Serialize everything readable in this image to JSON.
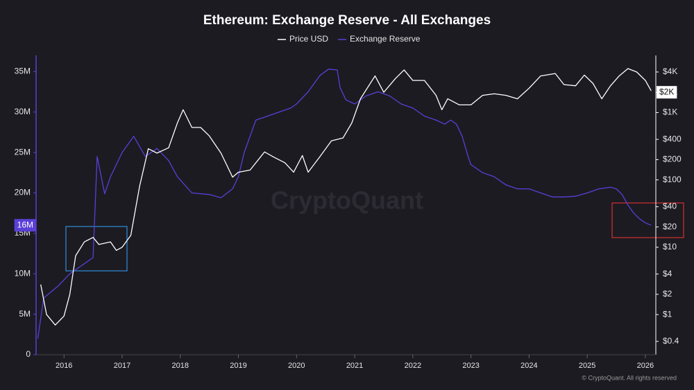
{
  "chart_data": {
    "type": "line",
    "title": "Ethereum: Exchange Reserve - All Exchanges",
    "xlim": [
      2015.52,
      2026.18
    ],
    "xticks": [
      2016,
      2017,
      2018,
      2019,
      2020,
      2021,
      2022,
      2023,
      2024,
      2025,
      2026
    ],
    "ylim": [
      0,
      37000000
    ],
    "yticks": [
      0,
      {
        "value": 5000000,
        "label": "5M"
      },
      {
        "value": 10000000,
        "label": "10M"
      },
      {
        "value": 15000000,
        "label": "15M"
      },
      {
        "value": 20000000,
        "label": "20M"
      },
      {
        "value": 25000000,
        "label": "25M"
      },
      {
        "value": 30000000,
        "label": "30M"
      },
      {
        "value": 35000000,
        "label": "35M"
      }
    ],
    "y2lim": [
      0.254,
      7050
    ],
    "y2scale": "log",
    "y2ticks": [
      {
        "value": 0.4,
        "label": "$0.4"
      },
      {
        "value": 1,
        "label": "$1"
      },
      {
        "value": 2,
        "label": "$2"
      },
      {
        "value": 4,
        "label": "$4"
      },
      {
        "value": 10,
        "label": "$10"
      },
      {
        "value": 20,
        "label": "$20"
      },
      {
        "value": 40,
        "label": "$40"
      },
      {
        "value": 100,
        "label": "$100"
      },
      {
        "value": 200,
        "label": "$200"
      },
      {
        "value": 400,
        "label": "$400"
      },
      {
        "value": 1000,
        "label": "$1K"
      },
      {
        "value": 2000,
        "label": "$2K"
      },
      {
        "value": 4000,
        "label": "$4K"
      }
    ],
    "legend": "top",
    "series": [
      {
        "name": "Price USD",
        "color": "#ffffff",
        "axis": "y2",
        "x": [
          2015.6,
          2015.7,
          2015.85,
          2016.0,
          2016.1,
          2016.2,
          2016.35,
          2016.5,
          2016.6,
          2016.8,
          2016.9,
          2017.0,
          2017.15,
          2017.3,
          2017.45,
          2017.6,
          2017.8,
          2017.95,
          2018.05,
          2018.2,
          2018.35,
          2018.5,
          2018.7,
          2018.9,
          2019.0,
          2019.2,
          2019.45,
          2019.6,
          2019.8,
          2019.95,
          2020.1,
          2020.2,
          2020.4,
          2020.6,
          2020.8,
          2020.95,
          2021.1,
          2021.35,
          2021.5,
          2021.7,
          2021.85,
          2022.0,
          2022.2,
          2022.4,
          2022.5,
          2022.6,
          2022.8,
          2023.0,
          2023.2,
          2023.4,
          2023.6,
          2023.8,
          2024.0,
          2024.2,
          2024.45,
          2024.6,
          2024.8,
          2024.95,
          2025.1,
          2025.25,
          2025.4,
          2025.55,
          2025.7,
          2025.85,
          2026.0,
          2026.1
        ],
        "values": [
          2.8,
          1,
          0.7,
          0.95,
          2,
          7.5,
          12,
          14,
          11,
          12,
          9,
          10,
          15,
          80,
          290,
          250,
          300,
          700,
          1100,
          600,
          600,
          450,
          250,
          110,
          130,
          140,
          260,
          220,
          180,
          130,
          230,
          130,
          220,
          380,
          420,
          700,
          1600,
          3500,
          2000,
          3200,
          4300,
          3000,
          3000,
          1800,
          1100,
          1600,
          1300,
          1300,
          1800,
          1900,
          1800,
          1600,
          2300,
          3500,
          3800,
          2600,
          2500,
          3600,
          2700,
          1600,
          2500,
          3500,
          4500,
          4000,
          3000,
          2100
        ]
      },
      {
        "name": "Exchange Reserve",
        "color": "#5b3fd6",
        "axis": "y",
        "x": [
          2015.55,
          2015.65,
          2015.9,
          2016.1,
          2016.3,
          2016.5,
          2016.57,
          2016.7,
          2016.8,
          2017.0,
          2017.2,
          2017.4,
          2017.6,
          2017.8,
          2017.95,
          2018.2,
          2018.5,
          2018.7,
          2018.9,
          2019.0,
          2019.1,
          2019.3,
          2019.5,
          2019.7,
          2019.9,
          2020.0,
          2020.2,
          2020.4,
          2020.55,
          2020.7,
          2020.75,
          2020.85,
          2021.0,
          2021.2,
          2021.4,
          2021.6,
          2021.8,
          2022.0,
          2022.2,
          2022.4,
          2022.55,
          2022.65,
          2022.75,
          2022.85,
          2022.95,
          2023.0,
          2023.2,
          2023.4,
          2023.6,
          2023.8,
          2024.0,
          2024.2,
          2024.4,
          2024.6,
          2024.8,
          2025.0,
          2025.2,
          2025.4,
          2025.5,
          2025.6,
          2025.7,
          2025.8,
          2025.9,
          2026.0,
          2026.1
        ],
        "values": [
          2000000,
          7000000,
          8500000,
          10000000,
          11000000,
          12000000,
          24500000,
          19900000,
          22000000,
          25000000,
          27000000,
          24500000,
          25500000,
          24000000,
          22000000,
          20000000,
          19800000,
          19400000,
          20500000,
          22000000,
          25000000,
          29000000,
          29500000,
          30000000,
          30500000,
          31000000,
          32500000,
          34500000,
          35300000,
          35200000,
          33000000,
          31500000,
          31000000,
          32000000,
          32500000,
          32000000,
          31000000,
          30500000,
          29500000,
          29000000,
          28500000,
          29000000,
          28500000,
          27000000,
          24500000,
          23500000,
          22500000,
          22000000,
          21000000,
          20500000,
          20500000,
          20000000,
          19500000,
          19500000,
          19600000,
          20000000,
          20500000,
          20700000,
          20500000,
          19800000,
          18500000,
          17500000,
          16800000,
          16300000,
          16000000
        ]
      }
    ],
    "annotations": [
      {
        "text": "16M",
        "value": 16000000,
        "axis": "y"
      },
      {
        "text": "$2K",
        "value": 2000,
        "axis": "y2"
      }
    ],
    "watermark": "CryptoQuant",
    "credit": "© CryptoQuant. All rights reserved"
  }
}
